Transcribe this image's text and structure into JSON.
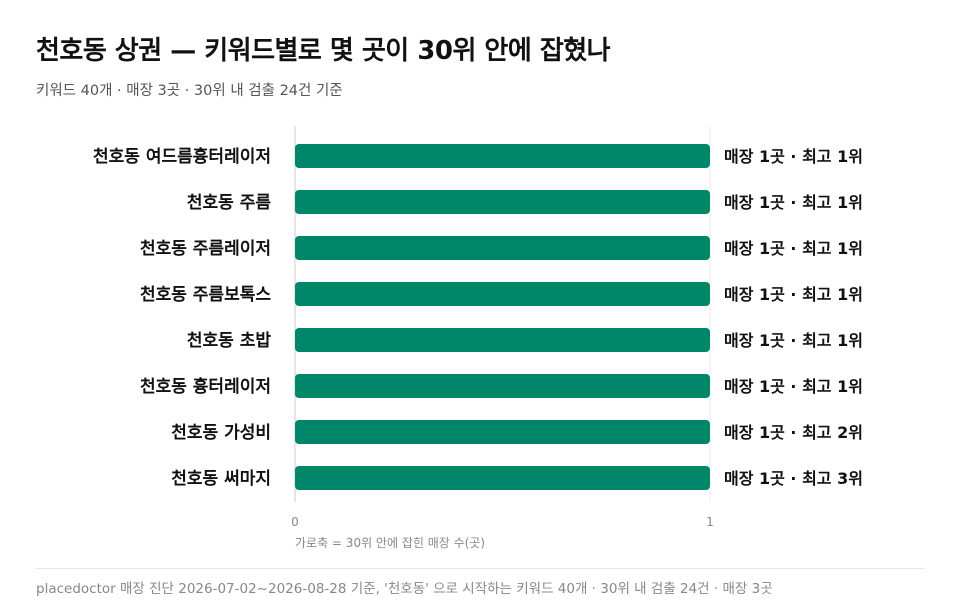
{
  "header": {
    "title": "천호동 상권 — 키워드별로 몇 곳이 30위 안에 잡혔나",
    "subtitle": "키워드 40개 · 매장 3곳 · 30위 내 검출 24건 기준"
  },
  "footer": {
    "note": "placedoctor 매장 진단 2026-07-02~2026-08-28 기준, '천호동' 으로 시작하는 키워드 40개 · 30위 내 검출 24건 · 매장 3곳"
  },
  "colors": {
    "bar": "#00876A",
    "axis": "#cccccc",
    "label": "#111111",
    "muted": "#888888"
  },
  "chart_data": {
    "type": "bar",
    "orientation": "horizontal",
    "categories": [
      "천호동 여드름흉터레이저",
      "천호동 주름",
      "천호동 주름레이저",
      "천호동 주름보톡스",
      "천호동 초밥",
      "천호동 흉터레이저",
      "천호동 가성비",
      "천호동 써마지"
    ],
    "values": [
      1,
      1,
      1,
      1,
      1,
      1,
      1,
      1
    ],
    "value_labels": [
      "매장 1곳 · 최고 1위",
      "매장 1곳 · 최고 1위",
      "매장 1곳 · 최고 1위",
      "매장 1곳 · 최고 1위",
      "매장 1곳 · 최고 1위",
      "매장 1곳 · 최고 1위",
      "매장 1곳 · 최고 2위",
      "매장 1곳 · 최고 3위"
    ],
    "xlim": [
      0,
      1
    ],
    "x_ticks": [
      "0",
      "1"
    ],
    "xlabel": "가로축 = 30위 안에 잡힌 매장 수(곳)",
    "ylabel": "",
    "grid": false
  }
}
